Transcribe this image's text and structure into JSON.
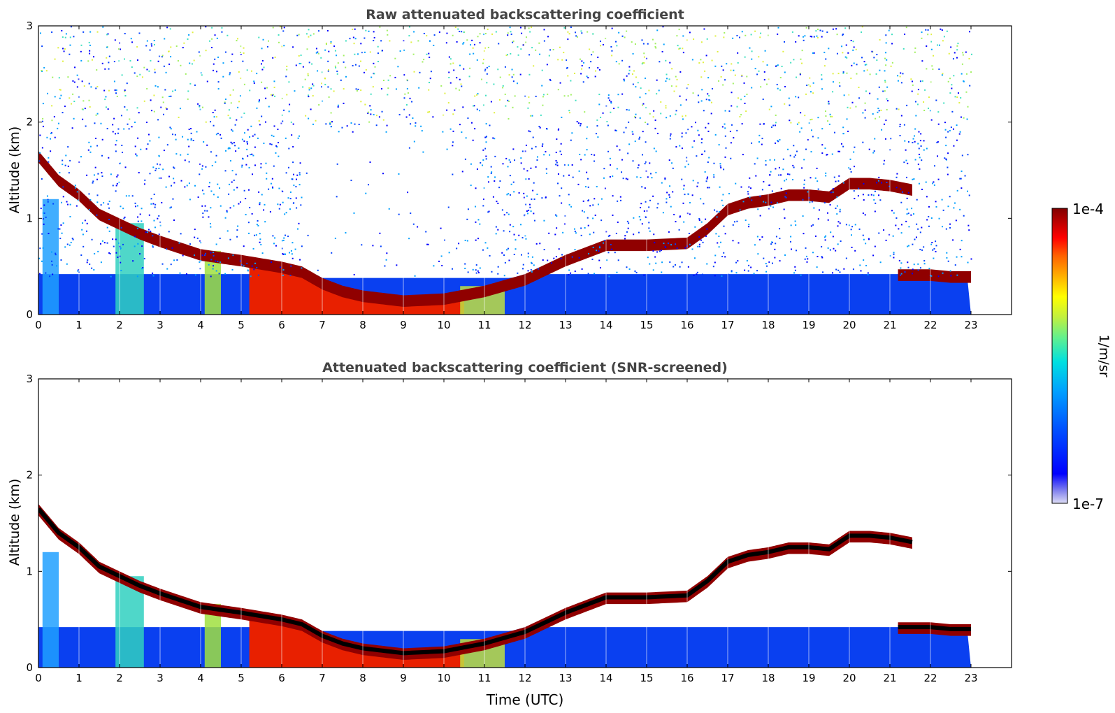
{
  "chart_data": [
    {
      "type": "heatmap",
      "title": "Raw attenuated backscattering coefficient",
      "ylabel": "Altitude (km)",
      "xlabel": "",
      "xlim": [
        0,
        24
      ],
      "ylim": [
        0,
        3
      ],
      "x_ticks": [
        0,
        1,
        2,
        3,
        4,
        5,
        6,
        7,
        8,
        9,
        10,
        11,
        12,
        13,
        14,
        15,
        16,
        17,
        18,
        19,
        20,
        21,
        22,
        23
      ],
      "y_ticks": [
        0,
        1,
        2,
        3
      ],
      "data_end_x": 23,
      "features": {
        "cloud_layer_top_km": [
          [
            0,
            1.7
          ],
          [
            0.5,
            1.45
          ],
          [
            1,
            1.3
          ],
          [
            1.5,
            1.1
          ],
          [
            2,
            1.0
          ],
          [
            2.5,
            0.9
          ],
          [
            3,
            0.82
          ],
          [
            3.5,
            0.75
          ],
          [
            4,
            0.68
          ],
          [
            5,
            0.62
          ],
          [
            6,
            0.55
          ],
          [
            6.5,
            0.5
          ],
          [
            7,
            0.38
          ],
          [
            7.5,
            0.3
          ],
          [
            8,
            0.25
          ],
          [
            9,
            0.2
          ],
          [
            10,
            0.22
          ],
          [
            11,
            0.3
          ],
          [
            12,
            0.42
          ],
          [
            12.5,
            0.52
          ],
          [
            13,
            0.62
          ],
          [
            13.5,
            0.7
          ],
          [
            14,
            0.78
          ],
          [
            15,
            0.78
          ],
          [
            16,
            0.8
          ],
          [
            16.5,
            0.95
          ],
          [
            17,
            1.15
          ],
          [
            17.5,
            1.22
          ],
          [
            18,
            1.25
          ],
          [
            18.5,
            1.3
          ],
          [
            19,
            1.3
          ],
          [
            19.5,
            1.28
          ],
          [
            20,
            1.42
          ],
          [
            20.5,
            1.42
          ],
          [
            21,
            1.4
          ],
          [
            21.6,
            1.35
          ]
        ],
        "low_layer_km": [
          [
            21.2,
            0.42
          ],
          [
            22,
            0.42
          ],
          [
            22.5,
            0.4
          ],
          [
            23,
            0.4
          ]
        ],
        "noise_region_top_km": 3
      }
    },
    {
      "type": "heatmap",
      "title": "Attenuated backscattering coefficient (SNR-screened)",
      "ylabel": "Altitude (km)",
      "xlabel": "Time (UTC)",
      "xlim": [
        0,
        24
      ],
      "ylim": [
        0,
        3
      ],
      "x_ticks": [
        0,
        1,
        2,
        3,
        4,
        5,
        6,
        7,
        8,
        9,
        10,
        11,
        12,
        13,
        14,
        15,
        16,
        17,
        18,
        19,
        20,
        21,
        22,
        23
      ],
      "y_ticks": [
        0,
        1,
        2,
        3
      ],
      "data_end_x": 23
    }
  ],
  "colorbar": {
    "label": "1/m/sr",
    "max_label": "1e-4",
    "min_label": "1e-7",
    "colors": [
      "#dcdcf5",
      "#8888ee",
      "#0000ff",
      "#0050ff",
      "#00a0ff",
      "#00e0e0",
      "#60f090",
      "#c0f040",
      "#ffff00",
      "#ffb000",
      "#ff6000",
      "#ff0000",
      "#c00000",
      "#800000"
    ]
  }
}
